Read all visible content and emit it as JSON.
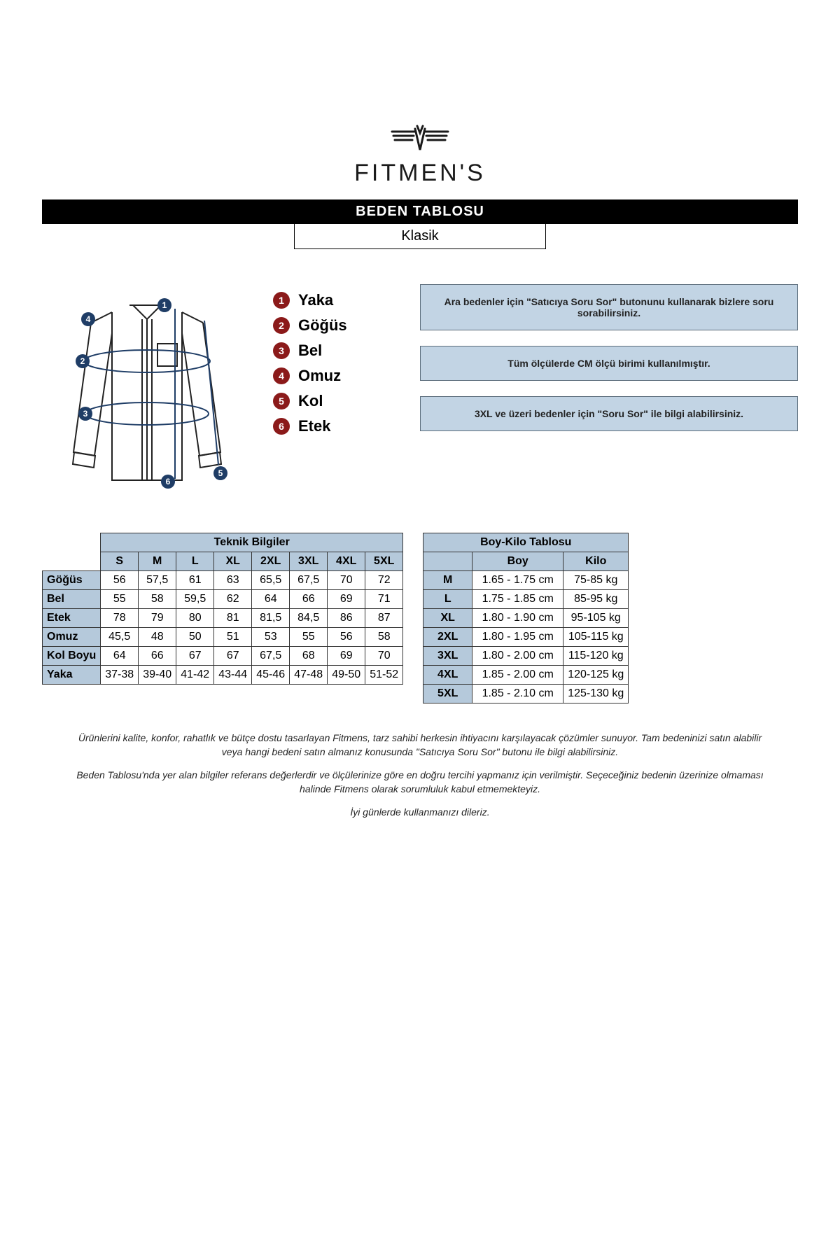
{
  "brand": "FITMEN'S",
  "title": "BEDEN TABLOSU",
  "subtitle": "Klasik",
  "colors": {
    "header_bg": "#b5c9db",
    "note_bg": "#c2d4e4",
    "badge_red": "#8b1a1a",
    "badge_blue": "#1f3d66",
    "border": "#333333",
    "text": "#000000"
  },
  "legend": [
    {
      "n": "1",
      "label": "Yaka"
    },
    {
      "n": "2",
      "label": "Göğüs"
    },
    {
      "n": "3",
      "label": "Bel"
    },
    {
      "n": "4",
      "label": "Omuz"
    },
    {
      "n": "5",
      "label": "Kol"
    },
    {
      "n": "6",
      "label": "Etek"
    }
  ],
  "notes": [
    "Ara bedenler için \"Satıcıya Soru Sor\" butonunu kullanarak bizlere soru sorabilirsiniz.",
    "Tüm ölçülerde CM ölçü birimi kullanılmıştır.",
    "3XL ve üzeri bedenler için \"Soru Sor\" ile bilgi alabilirsiniz."
  ],
  "tech": {
    "title": "Teknik Bilgiler",
    "sizes": [
      "S",
      "M",
      "L",
      "XL",
      "2XL",
      "3XL",
      "4XL",
      "5XL"
    ],
    "rows": [
      {
        "label": "Göğüs",
        "vals": [
          "56",
          "57,5",
          "61",
          "63",
          "65,5",
          "67,5",
          "70",
          "72"
        ]
      },
      {
        "label": "Bel",
        "vals": [
          "55",
          "58",
          "59,5",
          "62",
          "64",
          "66",
          "69",
          "71"
        ]
      },
      {
        "label": "Etek",
        "vals": [
          "78",
          "79",
          "80",
          "81",
          "81,5",
          "84,5",
          "86",
          "87"
        ]
      },
      {
        "label": "Omuz",
        "vals": [
          "45,5",
          "48",
          "50",
          "51",
          "53",
          "55",
          "56",
          "58"
        ]
      },
      {
        "label": "Kol Boyu",
        "vals": [
          "64",
          "66",
          "67",
          "67",
          "67,5",
          "68",
          "69",
          "70"
        ]
      },
      {
        "label": "Yaka",
        "vals": [
          "37-38",
          "39-40",
          "41-42",
          "43-44",
          "45-46",
          "47-48",
          "49-50",
          "51-52"
        ]
      }
    ]
  },
  "hw": {
    "title": "Boy-Kilo Tablosu",
    "cols": [
      "",
      "Boy",
      "Kilo"
    ],
    "rows": [
      {
        "size": "M",
        "boy": "1.65 - 1.75 cm",
        "kilo": "75-85 kg"
      },
      {
        "size": "L",
        "boy": "1.75 - 1.85 cm",
        "kilo": "85-95 kg"
      },
      {
        "size": "XL",
        "boy": "1.80 - 1.90 cm",
        "kilo": "95-105 kg"
      },
      {
        "size": "2XL",
        "boy": "1.80 - 1.95 cm",
        "kilo": "105-115 kg"
      },
      {
        "size": "3XL",
        "boy": "1.80 - 2.00 cm",
        "kilo": "115-120 kg"
      },
      {
        "size": "4XL",
        "boy": "1.85 - 2.00 cm",
        "kilo": "120-125 kg"
      },
      {
        "size": "5XL",
        "boy": "1.85 - 2.10 cm",
        "kilo": "125-130 kg"
      }
    ]
  },
  "footer": [
    "Ürünlerini kalite, konfor, rahatlık ve bütçe dostu tasarlayan Fitmens, tarz sahibi herkesin ihtiyacını karşılayacak çözümler sunuyor. Tam bedeninizi satın alabilir veya hangi bedeni satın almanız konusunda \"Satıcıya Soru Sor\" butonu ile bilgi alabilirsiniz.",
    "Beden Tablosu'nda yer alan bilgiler referans değerlerdir ve ölçülerinize göre en doğru tercihi yapmanız için verilmiştir. Seçeceğiniz bedenin üzerinize olmaması halinde Fitmens olarak sorumluluk kabul etmemekteyiz.",
    "İyi günlerde kullanmanızı dileriz."
  ]
}
